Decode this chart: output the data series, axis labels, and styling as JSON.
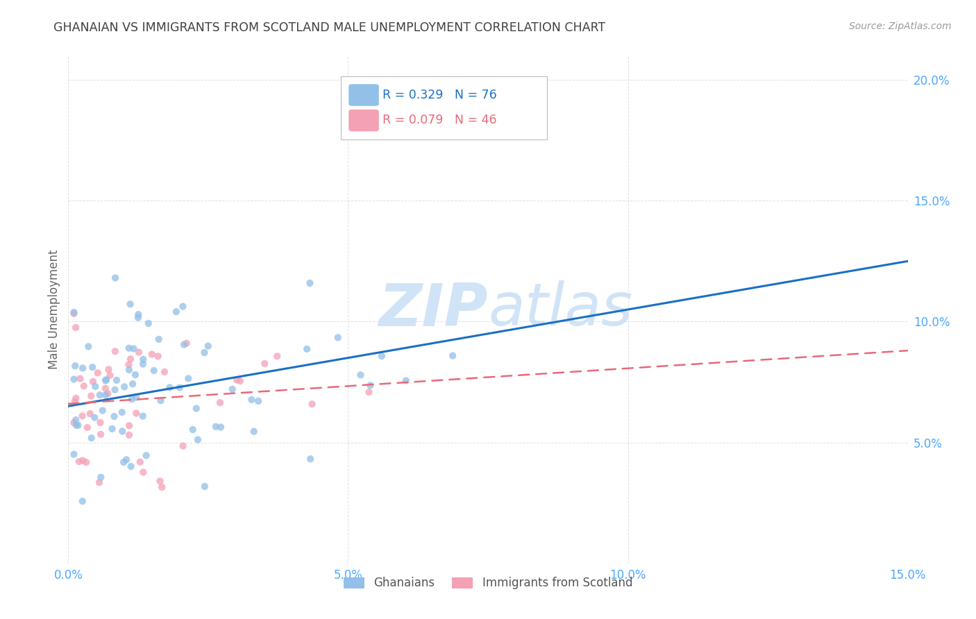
{
  "title": "GHANAIAN VS IMMIGRANTS FROM SCOTLAND MALE UNEMPLOYMENT CORRELATION CHART",
  "source": "Source: ZipAtlas.com",
  "ylabel_label": "Male Unemployment",
  "xlim": [
    0.0,
    0.15
  ],
  "ylim": [
    0.0,
    0.21
  ],
  "xticks": [
    0.0,
    0.05,
    0.1,
    0.15
  ],
  "xtick_labels": [
    "0.0%",
    "5.0%",
    "10.0%",
    "15.0%"
  ],
  "yticks": [
    0.05,
    0.1,
    0.15,
    0.2
  ],
  "ytick_labels": [
    "5.0%",
    "10.0%",
    "15.0%",
    "20.0%"
  ],
  "ghanaian_color": "#92c0e8",
  "scotland_color": "#f4a0b5",
  "trend_ghanaian_color": "#1a6fc4",
  "trend_scotland_color": "#e8687a",
  "watermark_color": "#cce0f5",
  "legend_r1": "R = 0.329",
  "legend_n1": "N = 76",
  "legend_r2": "R = 0.079",
  "legend_n2": "N = 46",
  "ghanaian_label": "Ghanaians",
  "scotland_label": "Immigrants from Scotland",
  "background_color": "#ffffff",
  "grid_color": "#e0e0e0",
  "title_color": "#404040",
  "axis_tick_color": "#4da6ff",
  "ylabel_color": "#666666",
  "source_color": "#999999",
  "marker_size": 55,
  "marker_alpha": 0.75,
  "trend_gh_x0": 0.0,
  "trend_gh_y0": 0.065,
  "trend_gh_x1": 0.15,
  "trend_gh_y1": 0.125,
  "trend_sc_x0": 0.0,
  "trend_sc_y0": 0.066,
  "trend_sc_x1": 0.15,
  "trend_sc_y1": 0.088
}
